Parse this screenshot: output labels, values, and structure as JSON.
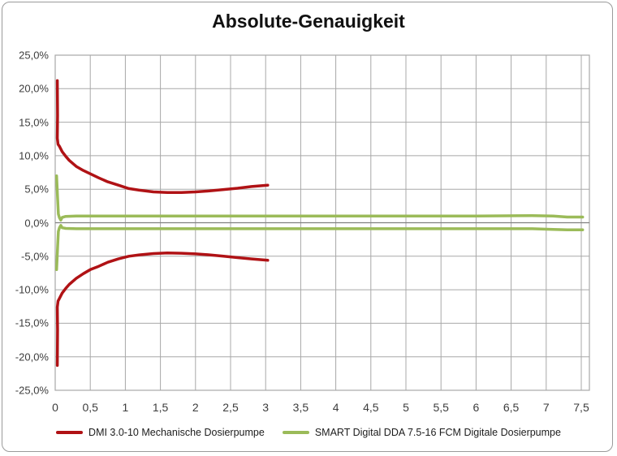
{
  "chart_data": {
    "type": "line",
    "title": "Absolute-Genauigkeit",
    "xlabel": "",
    "ylabel": "",
    "xlim": [
      0,
      7.6
    ],
    "ylim": [
      -25,
      25
    ],
    "grid": true,
    "legend_position": "bottom",
    "colors": {
      "grid": "#a8a8a8",
      "zero_axis": "#808080",
      "plot_border": "#a8a8a8",
      "series_dmi": "#b01215",
      "series_smart": "#9bbb59"
    },
    "x_axis": {
      "tick_labels": [
        "0",
        "0,5",
        "1",
        "1,5",
        "2",
        "2,5",
        "3",
        "3,5",
        "4",
        "4,5",
        "5",
        "5,5",
        "6",
        "6,5",
        "7",
        "7,5"
      ],
      "tick_values": [
        0,
        0.5,
        1,
        1.5,
        2,
        2.5,
        3,
        3.5,
        4,
        4.5,
        5,
        5.5,
        6,
        6.5,
        7,
        7.5
      ]
    },
    "y_axis": {
      "tick_labels": [
        "25,0%",
        "20,0%",
        "15,0%",
        "10,0%",
        "5,0%",
        "0,0%",
        "-5,0%",
        "-10,0%",
        "-15,0%",
        "-20,0%",
        "-25,0%"
      ],
      "tick_values": [
        25,
        20,
        15,
        10,
        5,
        0,
        -5,
        -10,
        -15,
        -20,
        -25
      ]
    },
    "series": [
      {
        "name": "DMI 3.0-10 Mechanische Dosierpumpe",
        "color": "#b01215",
        "lines": {
          "upper": [
            [
              0.03,
              21.2
            ],
            [
              0.033,
              16
            ],
            [
              0.03,
              12.6
            ],
            [
              0.04,
              11.7
            ],
            [
              0.06,
              11.4
            ],
            [
              0.1,
              10.6
            ],
            [
              0.15,
              9.9
            ],
            [
              0.2,
              9.3
            ],
            [
              0.3,
              8.4
            ],
            [
              0.4,
              7.8
            ],
            [
              0.5,
              7.3
            ],
            [
              0.62,
              6.7
            ],
            [
              0.75,
              6.1
            ],
            [
              0.9,
              5.6
            ],
            [
              1.05,
              5.1
            ],
            [
              1.2,
              4.85
            ],
            [
              1.4,
              4.6
            ],
            [
              1.6,
              4.5
            ],
            [
              1.8,
              4.5
            ],
            [
              2.0,
              4.6
            ],
            [
              2.2,
              4.75
            ],
            [
              2.4,
              4.95
            ],
            [
              2.6,
              5.15
            ],
            [
              2.8,
              5.4
            ],
            [
              3.03,
              5.6
            ]
          ],
          "lower": [
            [
              0.03,
              -21.3
            ],
            [
              0.033,
              -16
            ],
            [
              0.03,
              -12.6
            ],
            [
              0.04,
              -11.7
            ],
            [
              0.06,
              -11.3
            ],
            [
              0.1,
              -10.5
            ],
            [
              0.15,
              -9.8
            ],
            [
              0.2,
              -9.2
            ],
            [
              0.3,
              -8.3
            ],
            [
              0.4,
              -7.6
            ],
            [
              0.5,
              -7.0
            ],
            [
              0.62,
              -6.5
            ],
            [
              0.75,
              -5.9
            ],
            [
              0.9,
              -5.4
            ],
            [
              1.05,
              -5.0
            ],
            [
              1.2,
              -4.8
            ],
            [
              1.4,
              -4.6
            ],
            [
              1.6,
              -4.5
            ],
            [
              1.8,
              -4.55
            ],
            [
              2.0,
              -4.65
            ],
            [
              2.2,
              -4.8
            ],
            [
              2.4,
              -5.0
            ],
            [
              2.6,
              -5.2
            ],
            [
              2.8,
              -5.4
            ],
            [
              3.03,
              -5.6
            ]
          ]
        }
      },
      {
        "name": "SMART Digital DDA 7.5-16 FCM Digitale Dosierpumpe",
        "color": "#9bbb59",
        "lines": {
          "upper": [
            [
              0.02,
              7.0
            ],
            [
              0.035,
              3.5
            ],
            [
              0.045,
              1.3
            ],
            [
              0.06,
              0.75
            ],
            [
              0.08,
              0.4
            ],
            [
              0.1,
              0.8
            ],
            [
              0.15,
              0.95
            ],
            [
              0.3,
              1.0
            ],
            [
              1,
              1.0
            ],
            [
              2,
              1.0
            ],
            [
              3,
              1.0
            ],
            [
              4,
              1.0
            ],
            [
              5,
              1.0
            ],
            [
              6,
              1.0
            ],
            [
              6.8,
              1.05
            ],
            [
              7.1,
              1.0
            ],
            [
              7.3,
              0.85
            ],
            [
              7.52,
              0.85
            ]
          ],
          "lower": [
            [
              0.02,
              -7.0
            ],
            [
              0.035,
              -3.5
            ],
            [
              0.045,
              -1.3
            ],
            [
              0.06,
              -0.75
            ],
            [
              0.08,
              -0.4
            ],
            [
              0.1,
              -0.75
            ],
            [
              0.15,
              -0.85
            ],
            [
              0.3,
              -0.9
            ],
            [
              1,
              -0.9
            ],
            [
              2,
              -0.9
            ],
            [
              3,
              -0.9
            ],
            [
              4,
              -0.9
            ],
            [
              5,
              -0.9
            ],
            [
              6,
              -0.9
            ],
            [
              6.8,
              -0.9
            ],
            [
              7.1,
              -1.0
            ],
            [
              7.3,
              -1.05
            ],
            [
              7.52,
              -1.05
            ]
          ]
        }
      }
    ]
  }
}
